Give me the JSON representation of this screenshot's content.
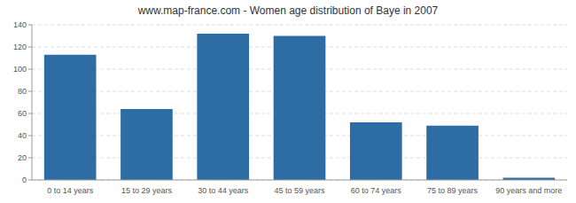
{
  "chart_data": {
    "type": "bar",
    "title": "www.map-france.com - Women age distribution of Baye in 2007",
    "categories": [
      "0 to 14 years",
      "15 to 29 years",
      "30 to 44 years",
      "45 to 59 years",
      "60 to 74 years",
      "75 to 89 years",
      "90 years and more"
    ],
    "values": [
      113,
      64,
      132,
      130,
      52,
      49,
      2
    ],
    "color": "#2e6da4",
    "ylim": [
      0,
      140
    ],
    "yticks": [
      0,
      20,
      40,
      60,
      80,
      100,
      120,
      140
    ],
    "grid": true
  }
}
